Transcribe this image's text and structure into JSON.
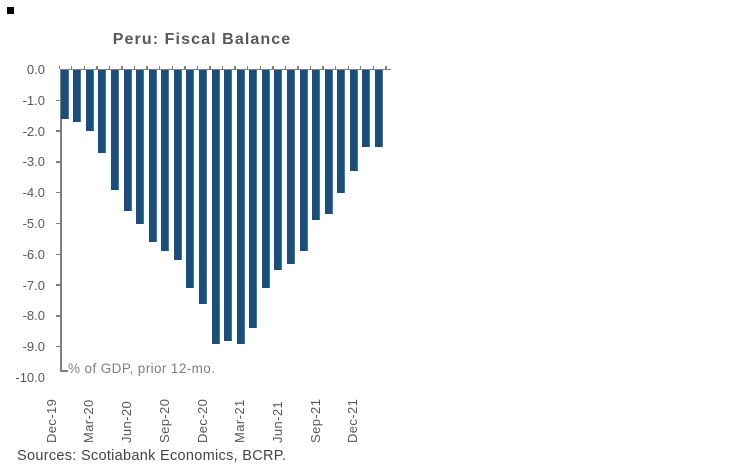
{
  "chart_data": {
    "type": "bar",
    "title": "Peru: Fiscal Balance",
    "annotation": "% of GDP, prior 12-mo.",
    "source": "Sources: Scotiabank Economics, BCRP.",
    "xlabel": "",
    "ylabel": "",
    "ylim": [
      -10.0,
      0.0
    ],
    "grid": false,
    "legend": "none",
    "categories": [
      "Dec-19",
      "Jan-20",
      "Feb-20",
      "Mar-20",
      "Apr-20",
      "May-20",
      "Jun-20",
      "Jul-20",
      "Aug-20",
      "Sep-20",
      "Oct-20",
      "Nov-20",
      "Dec-20",
      "Jan-21",
      "Feb-21",
      "Mar-21",
      "Apr-21",
      "May-21",
      "Jun-21",
      "Jul-21",
      "Aug-21",
      "Sep-21",
      "Oct-21",
      "Nov-21",
      "Dec-21",
      "Jan-22"
    ],
    "values": [
      -1.6,
      -1.7,
      -2.0,
      -2.7,
      -3.9,
      -4.6,
      -5.0,
      -5.6,
      -5.9,
      -6.2,
      -7.1,
      -7.6,
      -8.9,
      -8.8,
      -8.9,
      -8.4,
      -7.1,
      -6.5,
      -6.3,
      -5.9,
      -4.9,
      -4.7,
      -4.0,
      -3.3,
      -2.5,
      -2.5
    ],
    "x_tick_labels": [
      "Dec-19",
      "Mar-20",
      "Jun-20",
      "Sep-20",
      "Dec-20",
      "Mar-21",
      "Jun-21",
      "Sep-21",
      "Dec-21"
    ],
    "x_tick_every": 3,
    "y_tick_labels": [
      "0.0",
      "-1.0",
      "-2.0",
      "-3.0",
      "-4.0",
      "-5.0",
      "-6.0",
      "-7.0",
      "-8.0",
      "-9.0",
      "-10.0"
    ]
  },
  "colors": {
    "bar_fill": "#204C7A",
    "bar_edge": "#1E8C8C",
    "axis": "#7F7F7F",
    "title_text": "#595959",
    "tick_text": "#595959",
    "note_text": "#7F7F7F",
    "source_text": "#454545",
    "corner_mark": "#000000"
  }
}
